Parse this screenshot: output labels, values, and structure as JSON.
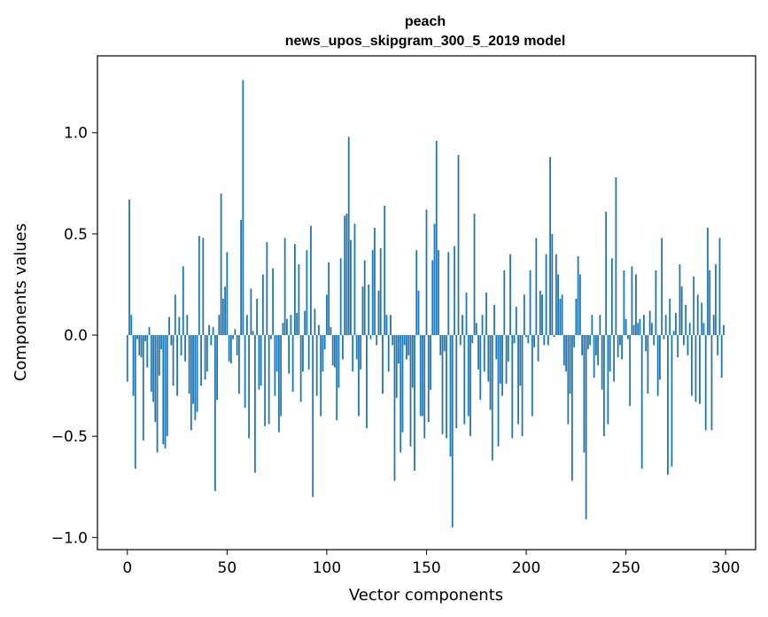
{
  "chart_data": {
    "type": "bar",
    "title_line1": "peach",
    "title_line2": "news_upos_skipgram_300_5_2019 model",
    "xlabel": "Vector components",
    "ylabel": "Components values",
    "xlim": [
      -15,
      315
    ],
    "ylim": [
      -1.06,
      1.38
    ],
    "xticks": [
      0,
      50,
      100,
      150,
      200,
      250,
      300
    ],
    "xtick_labels": [
      "0",
      "50",
      "100",
      "150",
      "200",
      "250",
      "300"
    ],
    "yticks": [
      -1.0,
      -0.5,
      0.0,
      0.5,
      1.0
    ],
    "ytick_labels": [
      "−1.0",
      "−0.5",
      "0.0",
      "0.5",
      "1.0"
    ],
    "bar_color": "#1f77b4",
    "values": [
      -0.23,
      0.67,
      0.1,
      -0.3,
      -0.66,
      -0.02,
      -0.1,
      -0.11,
      -0.52,
      -0.03,
      -0.16,
      0.04,
      -0.28,
      -0.33,
      -0.43,
      -0.58,
      -0.2,
      -0.07,
      -0.54,
      -0.56,
      -0.5,
      0.09,
      -0.05,
      -0.25,
      0.2,
      -0.3,
      0.09,
      -0.1,
      0.34,
      -0.13,
      0.1,
      -0.29,
      -0.47,
      -0.34,
      -0.42,
      -0.38,
      0.49,
      -0.25,
      0.48,
      -0.22,
      -0.18,
      0.05,
      -0.05,
      0.04,
      -0.77,
      -0.32,
      0.1,
      0.7,
      0.18,
      0.24,
      0.41,
      -0.13,
      -0.14,
      -0.02,
      0.03,
      -0.1,
      -0.29,
      0.57,
      1.26,
      -0.36,
      0.1,
      -0.51,
      0.23,
      0.02,
      -0.68,
      0.18,
      -0.27,
      -0.25,
      0.3,
      -0.45,
      0.46,
      -0.44,
      -0.02,
      0.33,
      -0.3,
      -0.18,
      -0.48,
      -0.4,
      0.06,
      0.48,
      0.08,
      -0.19,
      0.1,
      -0.28,
      0.45,
      0.11,
      0.35,
      -0.33,
      -0.18,
      0.12,
      0.42,
      -0.17,
      0.54,
      -0.8,
      0.13,
      -0.3,
      0.05,
      -0.4,
      -0.18,
      -0.07,
      0.2,
      0.36,
      0.04,
      -0.15,
      -0.16,
      -0.42,
      -0.26,
      0.38,
      -0.12,
      0.59,
      0.6,
      0.98,
      0.47,
      -0.18,
      0.55,
      -0.12,
      -0.4,
      -0.17,
      0.24,
      0.37,
      -0.46,
      0.25,
      -0.02,
      0.42,
      0.53,
      -0.05,
      0.22,
      0.43,
      -0.29,
      0.64,
      0.1,
      -0.18,
      0.1,
      -0.05,
      -0.72,
      -0.31,
      -0.14,
      -0.58,
      -0.48,
      -0.05,
      -0.12,
      -0.1,
      -0.55,
      -0.26,
      -0.67,
      0.42,
      0.22,
      -0.4,
      -0.4,
      -0.51,
      0.62,
      -0.43,
      -0.27,
      0.37,
      0.55,
      0.96,
      0.42,
      -0.1,
      -0.49,
      -0.08,
      -0.51,
      0.41,
      -0.6,
      -0.95,
      0.44,
      -0.46,
      0.89,
      -0.05,
      0.1,
      -0.44,
      0.21,
      -0.4,
      -0.5,
      -0.04,
      0.6,
      0.06,
      -0.17,
      -0.32,
      0.1,
      -0.18,
      0.21,
      -0.23,
      -0.37,
      -0.62,
      0.15,
      -0.12,
      -0.55,
      -0.24,
      -0.3,
      0.32,
      -0.24,
      -0.13,
      0.4,
      -0.51,
      -0.04,
      0.14,
      -0.44,
      -0.25,
      -0.5,
      0.2,
      -0.01,
      -0.04,
      0.32,
      -0.4,
      -0.06,
      0.48,
      -0.13,
      0.22,
      0.2,
      -0.05,
      0.4,
      -0.05,
      0.88,
      0.5,
      -0.01,
      0.4,
      0.3,
      0.18,
      0.2,
      -0.15,
      -0.18,
      -0.44,
      -0.29,
      -0.72,
      -0.06,
      0.18,
      0.39,
      0.3,
      -0.1,
      -0.58,
      -0.91,
      -0.07,
      -0.05,
      0.1,
      -0.21,
      -0.1,
      -0.15,
      0.1,
      -0.27,
      -0.5,
      0.61,
      -0.44,
      -0.18,
      0.38,
      -0.23,
      0.78,
      -0.11,
      -0.05,
      -0.12,
      0.32,
      0.08,
      -0.02,
      -0.35,
      0.34,
      0.05,
      0.3,
      0.06,
      0.08,
      -0.66,
      0.1,
      -0.08,
      -0.29,
      0.12,
      0.06,
      -0.05,
      0.32,
      -0.3,
      -0.22,
      0.48,
      -0.02,
      0.1,
      -0.69,
      0.18,
      -0.65,
      0.02,
      0.11,
      -0.11,
      0.35,
      0.24,
      -0.05,
      0.15,
      -0.1,
      0.06,
      -0.3,
      0.29,
      -0.33,
      0.2,
      -0.34,
      0.16,
      0.06,
      -0.47,
      0.53,
      0.32,
      -0.47,
      0.1,
      0.35,
      -0.1,
      0.48,
      -0.21,
      0.05
    ]
  }
}
